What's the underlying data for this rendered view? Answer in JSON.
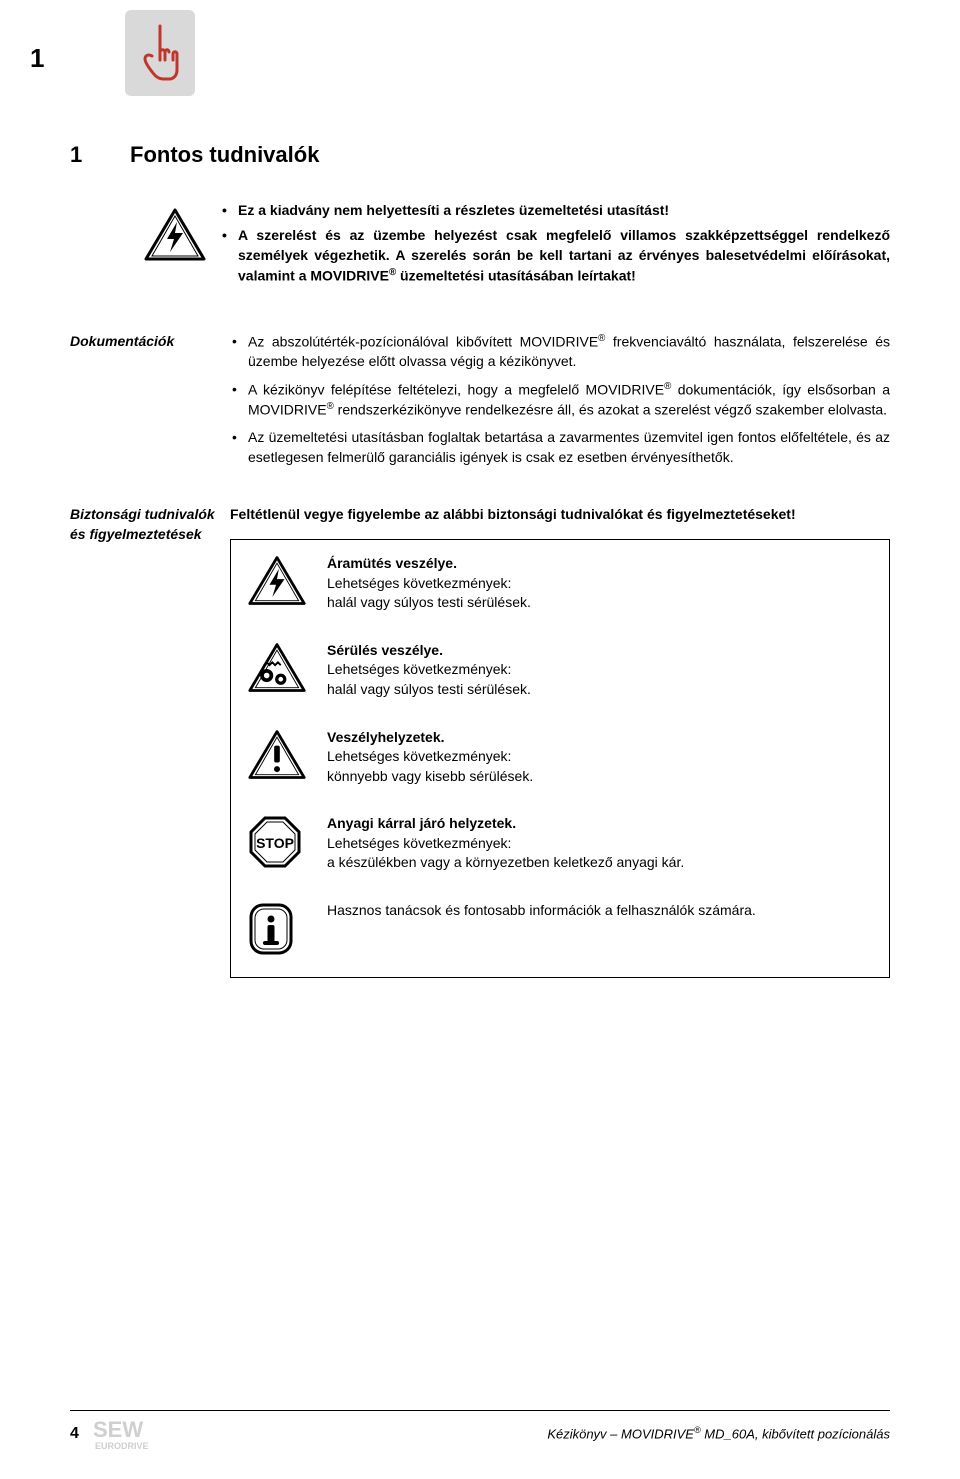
{
  "corner_number": "1",
  "section": {
    "number": "1",
    "title": "Fontos tudnivalók"
  },
  "intro": {
    "items": [
      "Ez a kiadvány nem helyettesíti a részletes üzemeltetési utasítást!",
      "A szerelést és az üzembe helyezést csak megfelelő villamos szakképzettséggel rendelkező személyek végezhetik. A szerelés során be kell tartani az érvényes balesetvédelmi előírásokat, valamint a MOVIDRIVE® üzemeltetési utasításában leírtakat!"
    ]
  },
  "docs": {
    "heading": "Dokumentációk",
    "items": [
      "Az abszolútérték-pozícionálóval kibővített MOVIDRIVE® frekvenciaváltó használata, felszerelése és üzembe helyezése előtt olvassa végig a kézikönyvet.",
      "A kézikönyv felépítése feltételezi, hogy a megfelelő MOVIDRIVE® dokumentációk, így elsősorban a MOVIDRIVE® rendszerkézikönyve rendelkezésre áll, és azokat a szerelést végző szakember elolvasta.",
      "Az üzemeltetési utasításban foglaltak betartása a zavarmentes üzemvitel igen fontos előfeltétele, és az esetlegesen felmerülő garanciális igények is csak ez esetben érvényesíthetők."
    ]
  },
  "safety": {
    "heading": "Biztonsági tudnivalók és figyelmeztetések",
    "intro": "Feltétlenül vegye figyelembe az alábbi biztonsági tudnivalókat és figyelmeztetéseket!",
    "hazards": [
      {
        "icon": "shock",
        "title": "Áramütés veszélye.",
        "line2": "Lehetséges következmények:",
        "line3": "halál vagy súlyos testi sérülések."
      },
      {
        "icon": "gear",
        "title": "Sérülés veszélye.",
        "line2": "Lehetséges következmények:",
        "line3": "halál vagy súlyos testi sérülések."
      },
      {
        "icon": "exclaim",
        "title": "Veszélyhelyzetek.",
        "line2": "Lehetséges következmények:",
        "line3": "könnyebb vagy kisebb sérülések."
      },
      {
        "icon": "stop",
        "title": "Anyagi kárral járó helyzetek.",
        "line2": "Lehetséges következmények:",
        "line3": "a készülékben vagy a környezetben keletkező anyagi kár."
      },
      {
        "icon": "info",
        "title": "",
        "line2": "Hasznos tanácsok és fontosabb információk a felhasználók számára.",
        "line3": ""
      }
    ]
  },
  "footer": {
    "page": "4",
    "logo_main": "SEW",
    "logo_sub": "EURODRIVE",
    "right": "Kézikönyv – MOVIDRIVE® MD_60A, kibővített pozícionálás"
  },
  "colors": {
    "icon_grey": "#d9d9d9",
    "text": "#000000",
    "bg": "#ffffff",
    "logo_grey": "#cfcfcf"
  }
}
